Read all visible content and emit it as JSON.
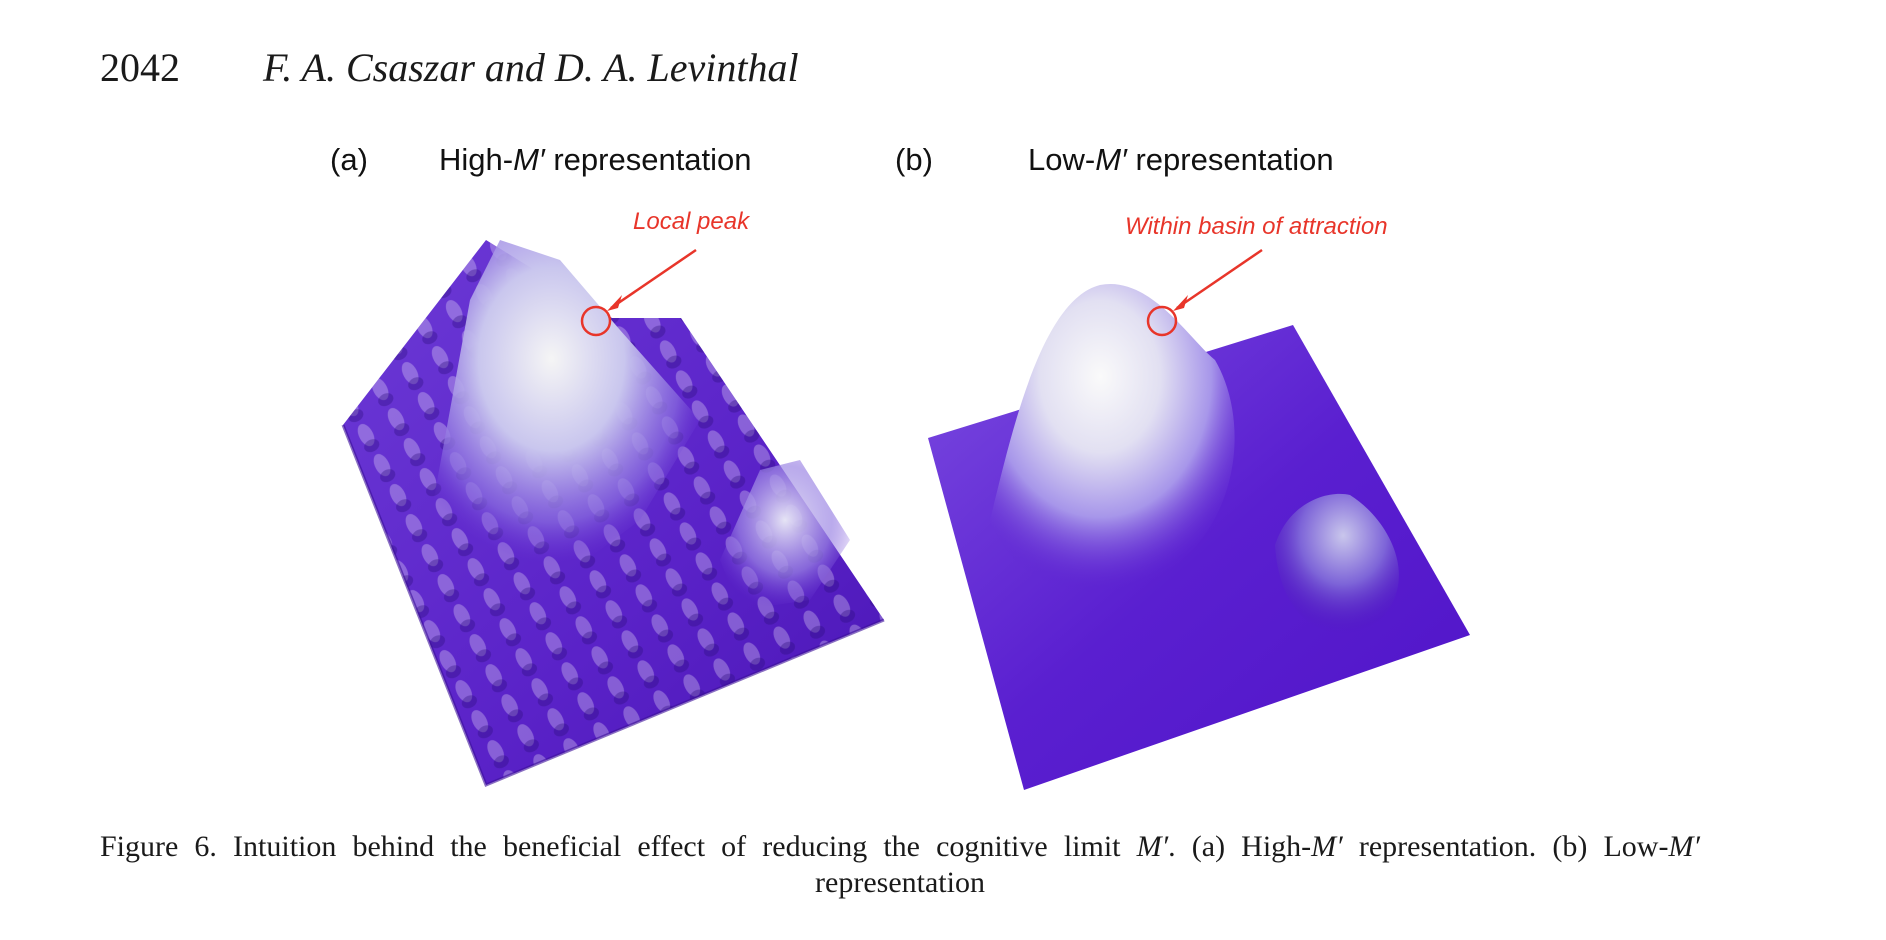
{
  "header": {
    "page_number": "2042",
    "running_head": "F. A. Csaszar and D. A. Levinthal"
  },
  "panels": [
    {
      "letter": "(a)",
      "title_prefix": "High-",
      "title_var": "M′",
      "title_suffix": " representation",
      "annotation": "Local peak",
      "surface_style": "rugged landscape with many local peaks"
    },
    {
      "letter": "(b)",
      "title_prefix": "Low-",
      "title_var": "M′",
      "title_suffix": " representation",
      "annotation": "Within basin of attraction",
      "surface_style": "smooth landscape with one large peak and one small peak"
    }
  ],
  "colors": {
    "annotation": "#e8352a",
    "surface_low": "#5b1fd0",
    "surface_mid": "#9b86e6",
    "surface_high": "#f4f4f4"
  },
  "caption": {
    "line1_a": "Figure 6.   Intuition behind the beneficial effect of reducing the cognitive limit ",
    "line1_var": "M′",
    "line1_b": ". (a) High-",
    "line1_var2": "M′",
    "line1_c": " representation. (b) Low-",
    "line1_var3": "M′",
    "line1_d": " representation"
  }
}
